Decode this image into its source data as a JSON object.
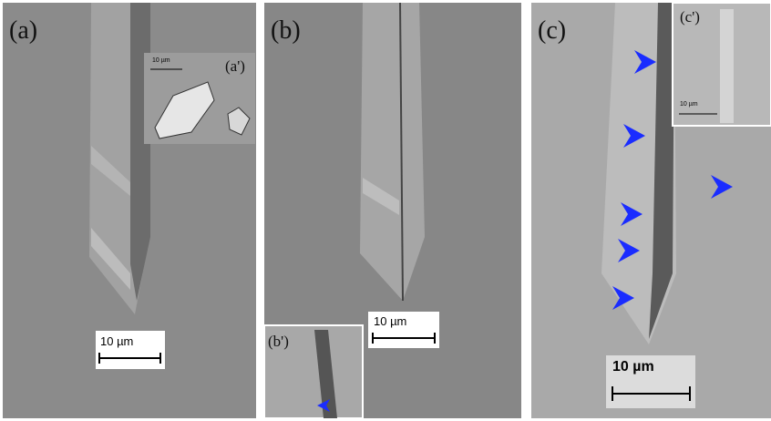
{
  "panels": [
    {
      "label": "(a)",
      "scale_bar": "10 µm",
      "inset": {
        "label": "(a')",
        "scale_bar": "10 µm"
      }
    },
    {
      "label": "(b)",
      "scale_bar": "10 µm",
      "inset": {
        "label": "(b')"
      }
    },
    {
      "label": "(c)",
      "scale_bar": "10 µm",
      "inset": {
        "label": "(c')",
        "scale_bar": "10 µm"
      }
    }
  ]
}
